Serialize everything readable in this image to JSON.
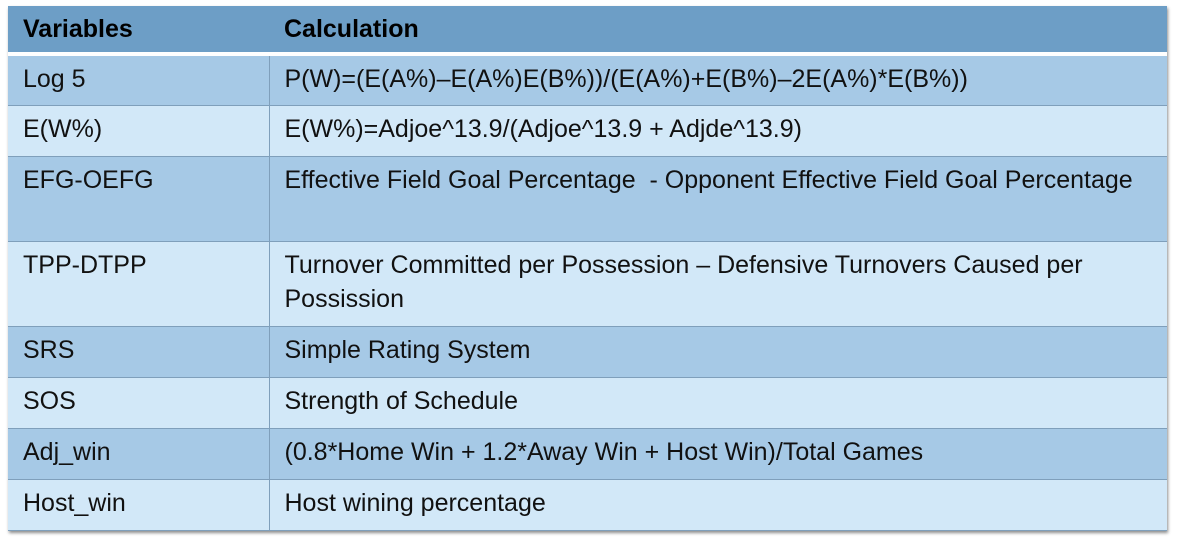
{
  "table": {
    "headers": {
      "variables": "Variables",
      "calculation": "Calculation"
    },
    "rows": [
      {
        "variable": "Log 5",
        "calculation": "P(W)=(E(A%)–E(A%)E(B%))/(E(A%)+E(B%)–2E(A%)*E(B%))"
      },
      {
        "variable": "E(W%)",
        "calculation": "E(W%)=Adjoe^13.9/(Adjoe^13.9 + Adjde^13.9)"
      },
      {
        "variable": "EFG-OEFG",
        "calculation": "Effective Field Goal Percentage  - Opponent Effective Field Goal Percentage"
      },
      {
        "variable": "TPP-DTPP",
        "calculation": "Turnover Committed per Possession – Defensive Turnovers Caused per Possission"
      },
      {
        "variable": "SRS",
        "calculation": "Simple Rating System"
      },
      {
        "variable": "SOS",
        "calculation": "Strength of Schedule"
      },
      {
        "variable": "Adj_win",
        "calculation": "(0.8*Home Win + 1.2*Away Win + Host Win)/Total Games"
      },
      {
        "variable": "Host_win",
        "calculation": "Host wining percentage"
      }
    ]
  },
  "colors": {
    "header_bg": "#6d9ec6",
    "row_dark": "#a6c9e6",
    "row_light": "#d2e8f8"
  }
}
